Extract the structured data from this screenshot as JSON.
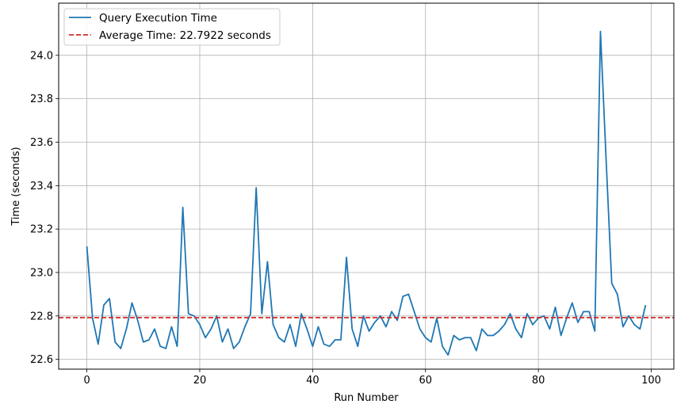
{
  "chart_data": {
    "type": "line",
    "title": "",
    "xlabel": "Run Number",
    "ylabel": "Time (seconds)",
    "xlim": [
      -5,
      104
    ],
    "ylim": [
      22.555,
      24.24
    ],
    "xticks": [
      0,
      20,
      40,
      60,
      80,
      100
    ],
    "xtick_labels": [
      "0",
      "20",
      "40",
      "60",
      "80",
      "100"
    ],
    "yticks": [
      22.6,
      22.8,
      23.0,
      23.2,
      23.4,
      23.6,
      23.8,
      24.0
    ],
    "ytick_labels": [
      "22.6",
      "22.8",
      "23.0",
      "23.2",
      "23.4",
      "23.6",
      "23.8",
      "24.0"
    ],
    "grid": true,
    "legend": "upper-left",
    "series": [
      {
        "name": "Query Execution Time",
        "color": "#1f77b4",
        "style": "solid",
        "x": [
          0,
          1,
          2,
          3,
          4,
          5,
          6,
          7,
          8,
          9,
          10,
          11,
          12,
          13,
          14,
          15,
          16,
          17,
          18,
          19,
          20,
          21,
          22,
          23,
          24,
          25,
          26,
          27,
          28,
          29,
          30,
          31,
          32,
          33,
          34,
          35,
          36,
          37,
          38,
          39,
          40,
          41,
          42,
          43,
          44,
          45,
          46,
          47,
          48,
          49,
          50,
          51,
          52,
          53,
          54,
          55,
          56,
          57,
          58,
          59,
          60,
          61,
          62,
          63,
          64,
          65,
          66,
          67,
          68,
          69,
          70,
          71,
          72,
          73,
          74,
          75,
          76,
          77,
          78,
          79,
          80,
          81,
          82,
          83,
          84,
          85,
          86,
          87,
          88,
          89,
          90,
          91,
          92,
          93,
          94,
          95,
          96,
          97,
          98,
          99
        ],
        "values": [
          23.12,
          22.79,
          22.67,
          22.85,
          22.88,
          22.68,
          22.65,
          22.74,
          22.86,
          22.78,
          22.68,
          22.69,
          22.74,
          22.66,
          22.65,
          22.75,
          22.66,
          23.3,
          22.81,
          22.8,
          22.76,
          22.7,
          22.74,
          22.8,
          22.68,
          22.74,
          22.65,
          22.68,
          22.75,
          22.81,
          23.39,
          22.81,
          23.05,
          22.76,
          22.7,
          22.68,
          22.76,
          22.66,
          22.81,
          22.74,
          22.66,
          22.75,
          22.67,
          22.66,
          22.69,
          22.69,
          23.07,
          22.74,
          22.66,
          22.8,
          22.73,
          22.77,
          22.8,
          22.75,
          22.82,
          22.78,
          22.89,
          22.9,
          22.82,
          22.74,
          22.7,
          22.68,
          22.79,
          22.66,
          22.62,
          22.71,
          22.69,
          22.7,
          22.7,
          22.64,
          22.74,
          22.71,
          22.71,
          22.73,
          22.76,
          22.81,
          22.74,
          22.7,
          22.81,
          22.76,
          22.79,
          22.8,
          22.74,
          22.84,
          22.71,
          22.79,
          22.86,
          22.77,
          22.82,
          22.82,
          22.73,
          24.11,
          23.52,
          22.95,
          22.9,
          22.75,
          22.8,
          22.76,
          22.74,
          22.85
        ]
      },
      {
        "name": "Average Time: 22.7922 seconds",
        "color": "#d62728",
        "style": "dashed",
        "constant": 22.7922
      }
    ]
  }
}
